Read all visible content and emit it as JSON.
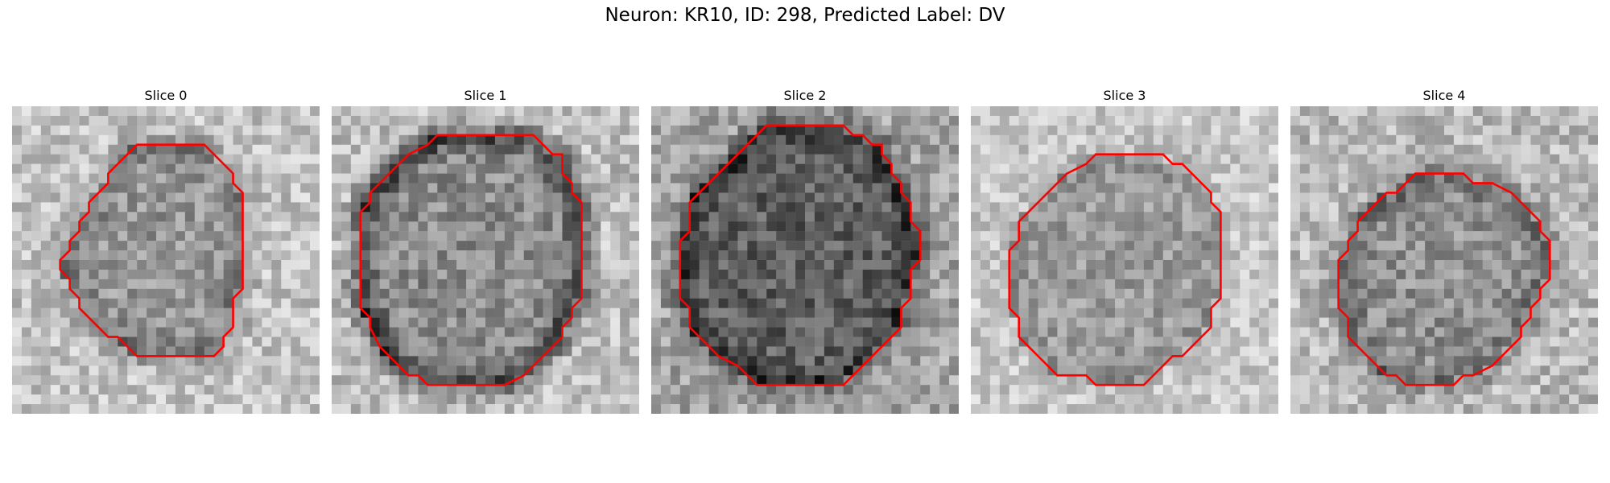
{
  "figure": {
    "title": "Neuron: KR10, ID: 298, Predicted Label: DV",
    "contour_color": "#ff0000"
  },
  "panels": [
    {
      "title": "Slice 0",
      "contour": [
        [
          17,
          4
        ],
        [
          20,
          4
        ],
        [
          23,
          7
        ],
        [
          23,
          8
        ],
        [
          24,
          9
        ],
        [
          24,
          19
        ],
        [
          23,
          20
        ],
        [
          23,
          23
        ],
        [
          22,
          24
        ],
        [
          22,
          25
        ],
        [
          21,
          26
        ],
        [
          13,
          26
        ],
        [
          11,
          24
        ],
        [
          10,
          24
        ],
        [
          7,
          21
        ],
        [
          7,
          20
        ],
        [
          6,
          19
        ],
        [
          6,
          18
        ],
        [
          5,
          17
        ],
        [
          5,
          16
        ],
        [
          6,
          15
        ],
        [
          6,
          14
        ],
        [
          7,
          13
        ],
        [
          7,
          12
        ],
        [
          8,
          11
        ],
        [
          8,
          10
        ],
        [
          10,
          8
        ],
        [
          10,
          7
        ],
        [
          11,
          6
        ],
        [
          12,
          5
        ],
        [
          13,
          4
        ]
      ]
    },
    {
      "title": "Slice 1",
      "contour": [
        [
          14,
          3
        ],
        [
          21,
          3
        ],
        [
          23,
          5
        ],
        [
          24,
          5
        ],
        [
          24,
          7
        ],
        [
          25,
          8
        ],
        [
          25,
          9
        ],
        [
          26,
          10
        ],
        [
          26,
          20
        ],
        [
          25,
          21
        ],
        [
          25,
          22
        ],
        [
          24,
          23
        ],
        [
          24,
          24
        ],
        [
          22,
          26
        ],
        [
          21,
          27
        ],
        [
          20,
          28
        ],
        [
          18,
          29
        ],
        [
          10,
          29
        ],
        [
          9,
          28
        ],
        [
          8,
          28
        ],
        [
          7,
          27
        ],
        [
          6,
          26
        ],
        [
          5,
          25
        ],
        [
          4,
          23
        ],
        [
          4,
          22
        ],
        [
          3,
          21
        ],
        [
          3,
          11
        ],
        [
          4,
          10
        ],
        [
          4,
          9
        ],
        [
          5,
          8
        ],
        [
          6,
          7
        ],
        [
          7,
          6
        ],
        [
          8,
          5
        ],
        [
          10,
          4
        ],
        [
          11,
          3
        ]
      ]
    },
    {
      "title": "Slice 2",
      "contour": [
        [
          12,
          2
        ],
        [
          20,
          2
        ],
        [
          21,
          3
        ],
        [
          22,
          3
        ],
        [
          23,
          4
        ],
        [
          24,
          4
        ],
        [
          24,
          5
        ],
        [
          25,
          6
        ],
        [
          25,
          7
        ],
        [
          26,
          8
        ],
        [
          26,
          9
        ],
        [
          27,
          10
        ],
        [
          27,
          12
        ],
        [
          28,
          13
        ],
        [
          28,
          16
        ],
        [
          27,
          17
        ],
        [
          27,
          20
        ],
        [
          26,
          21
        ],
        [
          26,
          23
        ],
        [
          25,
          24
        ],
        [
          24,
          25
        ],
        [
          23,
          26
        ],
        [
          22,
          27
        ],
        [
          21,
          28
        ],
        [
          20,
          29
        ],
        [
          11,
          29
        ],
        [
          10,
          28
        ],
        [
          9,
          27
        ],
        [
          7,
          26
        ],
        [
          6,
          25
        ],
        [
          5,
          24
        ],
        [
          4,
          23
        ],
        [
          4,
          21
        ],
        [
          3,
          20
        ],
        [
          3,
          14
        ],
        [
          4,
          13
        ],
        [
          4,
          10
        ],
        [
          5,
          9
        ],
        [
          6,
          8
        ],
        [
          7,
          7
        ],
        [
          8,
          6
        ],
        [
          9,
          5
        ],
        [
          10,
          4
        ],
        [
          11,
          3
        ]
      ]
    },
    {
      "title": "Slice 3",
      "contour": [
        [
          13,
          5
        ],
        [
          20,
          5
        ],
        [
          21,
          6
        ],
        [
          22,
          6
        ],
        [
          24,
          8
        ],
        [
          25,
          9
        ],
        [
          25,
          10
        ],
        [
          26,
          11
        ],
        [
          26,
          20
        ],
        [
          25,
          21
        ],
        [
          25,
          23
        ],
        [
          24,
          24
        ],
        [
          23,
          25
        ],
        [
          22,
          26
        ],
        [
          21,
          26
        ],
        [
          20,
          27
        ],
        [
          19,
          28
        ],
        [
          18,
          29
        ],
        [
          13,
          29
        ],
        [
          12,
          28
        ],
        [
          9,
          28
        ],
        [
          8,
          27
        ],
        [
          7,
          26
        ],
        [
          6,
          25
        ],
        [
          5,
          24
        ],
        [
          5,
          22
        ],
        [
          4,
          21
        ],
        [
          4,
          18
        ],
        [
          4,
          15
        ],
        [
          5,
          14
        ],
        [
          5,
          12
        ],
        [
          6,
          11
        ],
        [
          7,
          10
        ],
        [
          8,
          9
        ],
        [
          9,
          8
        ],
        [
          10,
          7
        ],
        [
          12,
          6
        ]
      ]
    },
    {
      "title": "Slice 4",
      "contour": [
        [
          13,
          7
        ],
        [
          18,
          7
        ],
        [
          19,
          8
        ],
        [
          21,
          8
        ],
        [
          23,
          9
        ],
        [
          24,
          10
        ],
        [
          25,
          11
        ],
        [
          26,
          12
        ],
        [
          26,
          13
        ],
        [
          27,
          14
        ],
        [
          27,
          18
        ],
        [
          26,
          19
        ],
        [
          26,
          20
        ],
        [
          25,
          21
        ],
        [
          25,
          22
        ],
        [
          24,
          23
        ],
        [
          24,
          24
        ],
        [
          23,
          25
        ],
        [
          22,
          26
        ],
        [
          21,
          27
        ],
        [
          19,
          28
        ],
        [
          18,
          28
        ],
        [
          17,
          29
        ],
        [
          12,
          29
        ],
        [
          11,
          28
        ],
        [
          10,
          28
        ],
        [
          9,
          27
        ],
        [
          8,
          26
        ],
        [
          7,
          25
        ],
        [
          6,
          24
        ],
        [
          6,
          22
        ],
        [
          5,
          21
        ],
        [
          5,
          16
        ],
        [
          6,
          15
        ],
        [
          6,
          14
        ],
        [
          7,
          13
        ],
        [
          7,
          12
        ],
        [
          8,
          11
        ],
        [
          9,
          10
        ],
        [
          10,
          9
        ],
        [
          11,
          9
        ],
        [
          12,
          8
        ]
      ]
    }
  ]
}
